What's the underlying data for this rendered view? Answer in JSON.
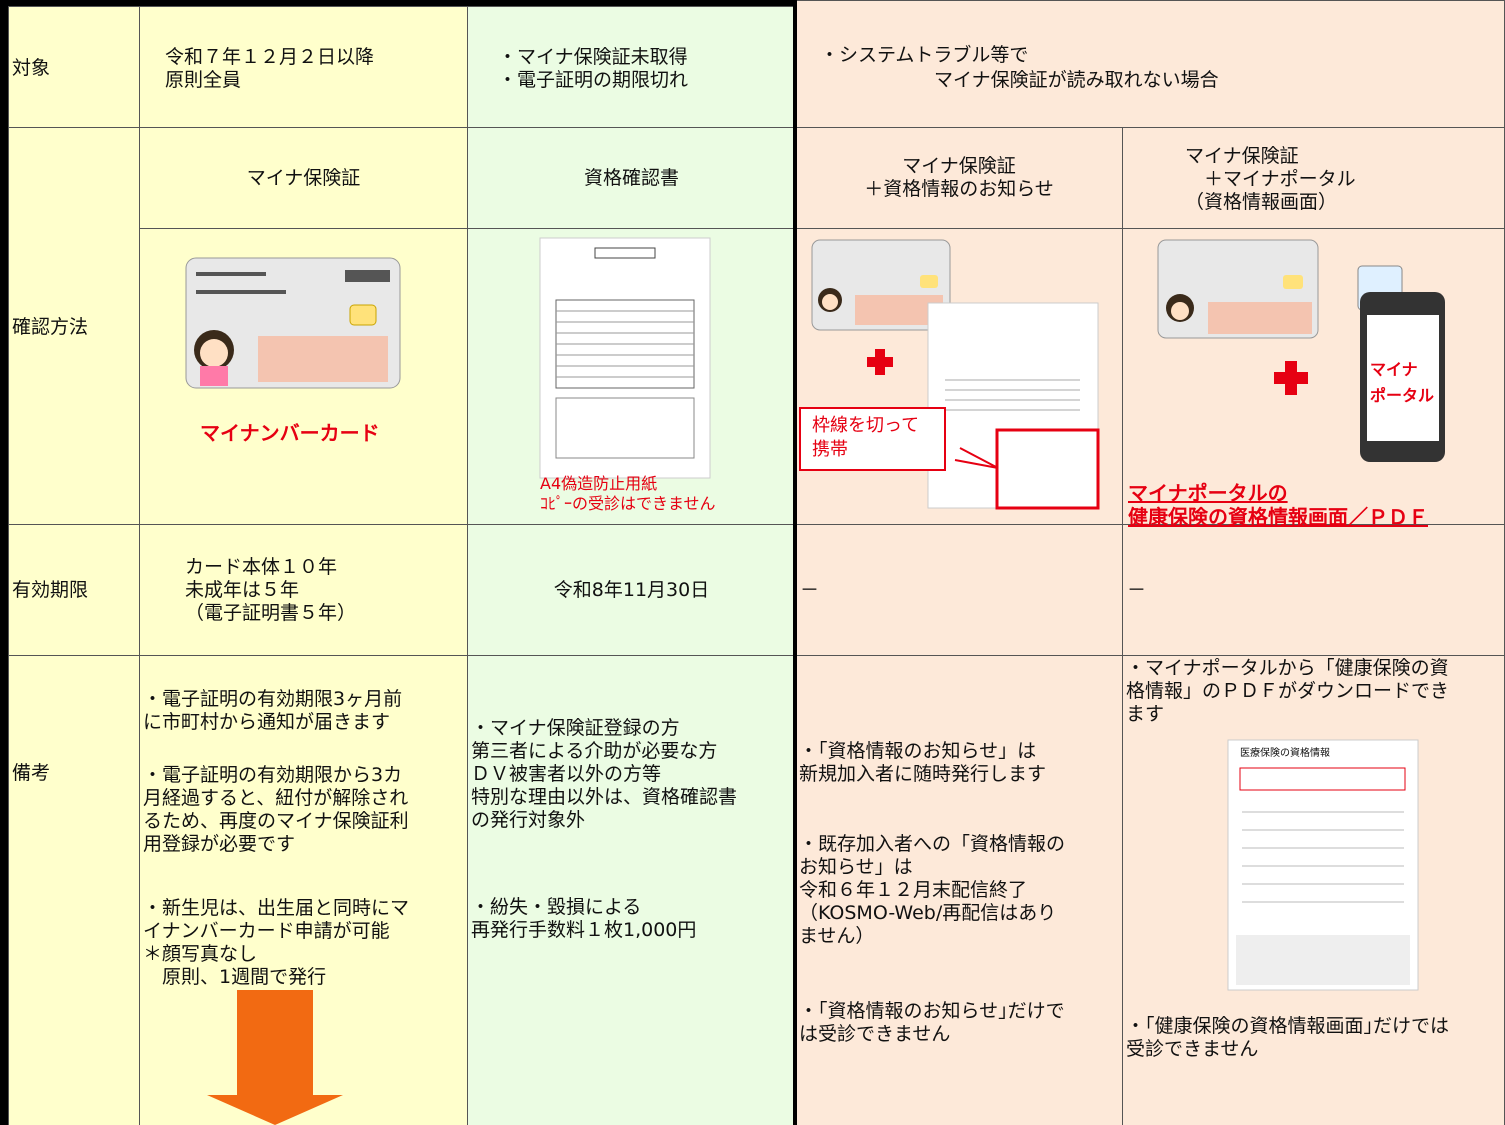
{
  "table": {
    "row_headers": [
      "対象",
      "確認方法",
      "有効期限",
      "備考"
    ],
    "target": [
      "令和７年１２月２日以降\n原則全員",
      "・マイナ保険証未取得\n・電子証明の期限切れ",
      "・システムトラブル等で\n　　　　　　マイナ保険証が読み取れない場合"
    ],
    "methods": [
      "マイナ保険証",
      "資格確認書",
      "マイナ保険証\n＋資格情報のお知らせ",
      "マイナ保険証\n　＋マイナポータル\n（資格情報画面）"
    ],
    "image_captions": {
      "card": "マイナンバーカード",
      "certificate": [
        "A4偽造防止用紙",
        "ｺﾋﾟｰの受診はできません"
      ],
      "callout": "枠線を切って\n携帯",
      "phone": "マイナ\nポータル",
      "portal": "マイナポータルの\n健康保険の資格情報画面／ＰＤＦ",
      "portal_doc_title": "医療保険の資格情報"
    },
    "validity": [
      "カード本体１０年\n未成年は５年\n（電子証明書５年）",
      "令和8年11月30日",
      "－",
      "－"
    ],
    "notes": [
      [
        "・電子証明の有効期限3ヶ月前\nに市町村から通知が届きます",
        "・電子証明の有効期限から3カ\n月経過すると、紐付が解除され\nるため、再度のマイナ保険証利\n用登録が必要です",
        "・新生児は、出生届と同時にマ\nイナンバーカード申請が可能\n＊顔写真なし\n　原則、1週間で発行"
      ],
      [
        "・マイナ保険証登録の方\n第三者による介助が必要な方\nＤＶ被害者以外の方等\n特別な理由以外は、資格確認書\nの発行対象外",
        "・紛失・毀損による\n再発行手数料１枚1,000円"
      ],
      [
        "・「資格情報のお知らせ」は\n新規加入者に随時発行します",
        "・既存加入者への「資格情報の\nお知らせ」は\n令和６年１２月末配信終了\n（KOSMO-Web/再配信はあり\nません）",
        "・｢資格情報のお知らせ｣だけで\nは受診できません"
      ],
      [
        "・マイナポータルから「健康保険の資\n格情報」のＰＤＦがダウンロードでき\nます",
        "・｢健康保険の資格情報画面｣だけでは\n受診できません"
      ]
    ]
  }
}
